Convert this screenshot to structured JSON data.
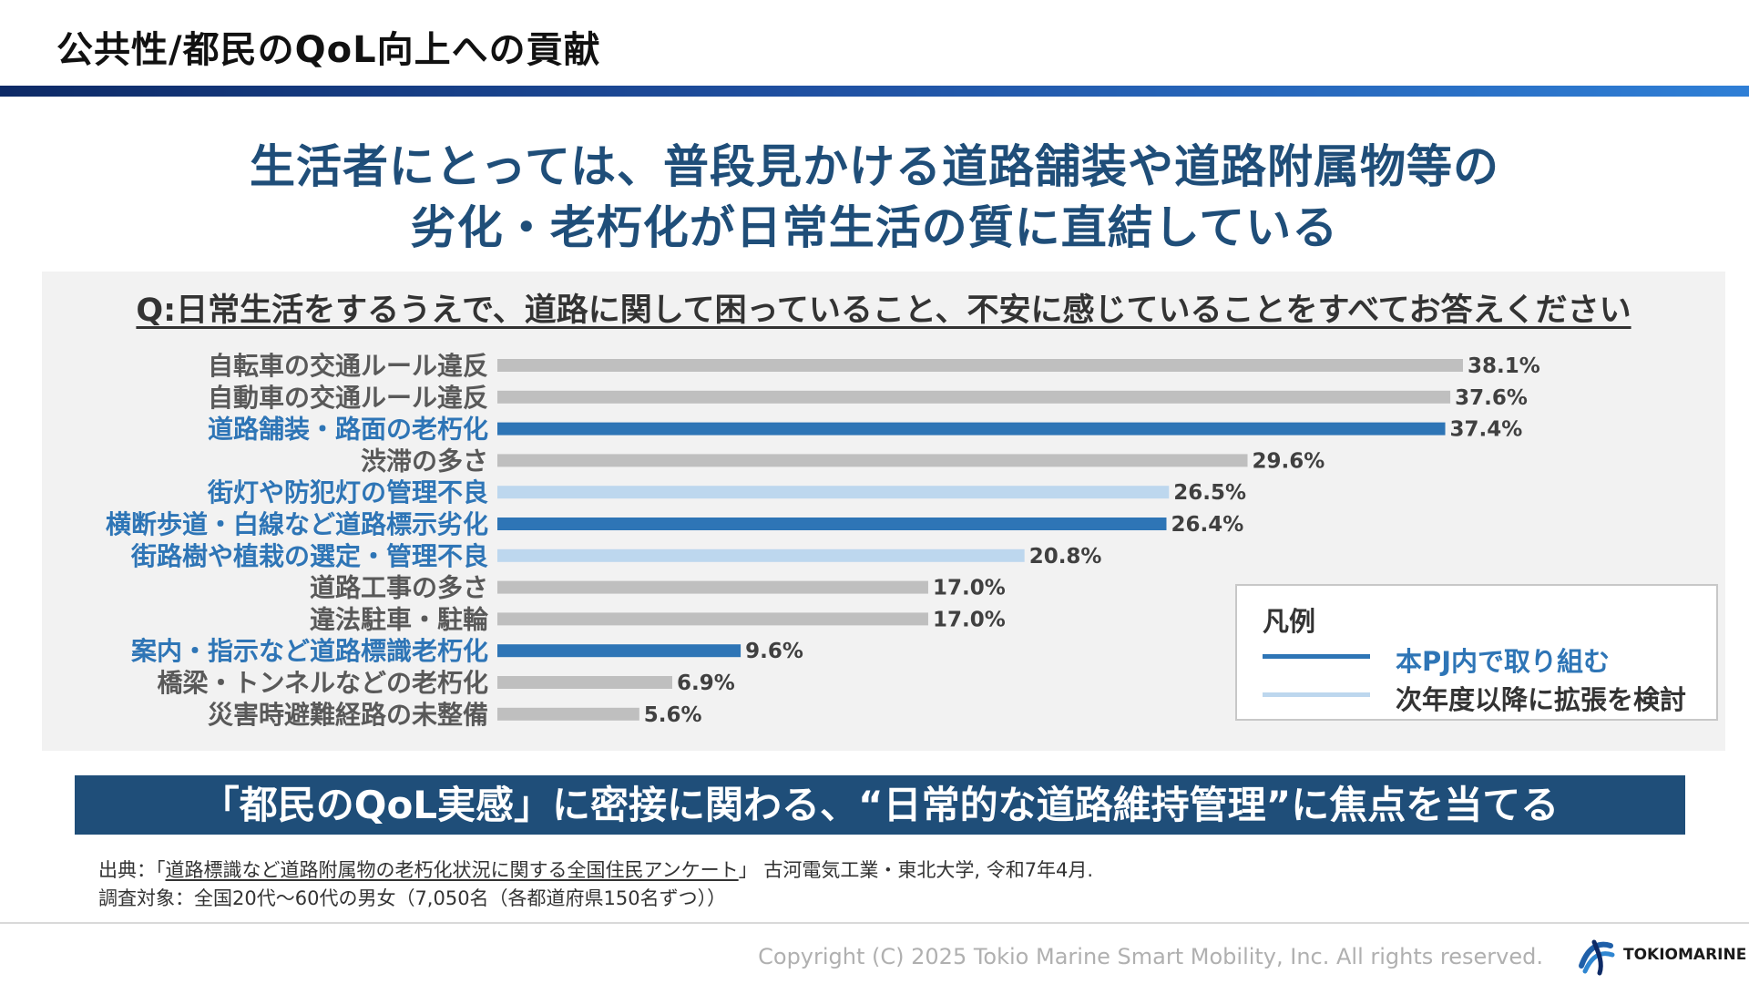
{
  "page_title": "公共性/都民のQoL向上への貢献",
  "headline": {
    "line1": "生活者にとっては、普段見かける道路舗装や道路附属物等の",
    "line2": "劣化・老朽化が日常生活の質に直結している"
  },
  "colors": {
    "gray_bar": "#bfbfbf",
    "dark_blue_bar": "#2e75b6",
    "light_blue_bar": "#bdd7ee",
    "highlight_text": "#2e75b6",
    "normal_text": "#595959",
    "banner_bg": "#1f4e79"
  },
  "chart_data": {
    "type": "bar",
    "orientation": "horizontal",
    "title": "Q:日常生活をするうえで、道路に関して困っていること、不安に感じていることをすべてお答えください",
    "xlim": [
      0,
      40
    ],
    "grid": false,
    "legend_position": "bottom-right",
    "categories": [
      "自転車の交通ルール違反",
      "自動車の交通ルール違反",
      "道路舗装・路面の老朽化",
      "渋滞の多さ",
      "街灯や防犯灯の管理不良",
      "横断歩道・白線など道路標示劣化",
      "街路樹や植栽の選定・管理不良",
      "道路工事の多さ",
      "違法駐車・駐輪",
      "案内・指示など道路標識老朽化",
      "橋梁・トンネルなどの老朽化",
      "災害時避難経路の未整備"
    ],
    "values": [
      38.1,
      37.6,
      37.4,
      29.6,
      26.5,
      26.4,
      20.8,
      17.0,
      17.0,
      9.6,
      6.9,
      5.6
    ],
    "value_labels": [
      "38.1%",
      "37.6%",
      "37.4%",
      "29.6%",
      "26.5%",
      "26.4%",
      "20.8%",
      "17.0%",
      "17.0%",
      "9.6%",
      "6.9%",
      "5.6%"
    ],
    "groups": [
      "other",
      "other",
      "current",
      "other",
      "next",
      "current",
      "next",
      "other",
      "other",
      "current",
      "other",
      "other"
    ],
    "legend": {
      "title": "凡例",
      "entries": [
        {
          "key": "current",
          "label": "本PJ内で取り組む"
        },
        {
          "key": "next",
          "label": "次年度以降に拡張を検討"
        }
      ]
    }
  },
  "banner": "「都民のQoL実感」に密接に関わる、“日常的な道路維持管理”に焦点を当てる",
  "source": {
    "prefix": "出典：「",
    "title": "道路標識など道路附属物の老朽化状況に関する全国住民アンケート",
    "suffix": "」 古河電気工業・東北大学, 令和7年4月.",
    "line2": "調査対象：全国20代～60代の男女（7,050名（各都道府県150名ずつ））"
  },
  "copyright": "Copyright (C) 2025 Tokio Marine Smart Mobility, Inc. All rights reserved.",
  "logo": {
    "text": "TOKIOMARINE",
    "icon": "tokio-marine-logo-icon"
  }
}
